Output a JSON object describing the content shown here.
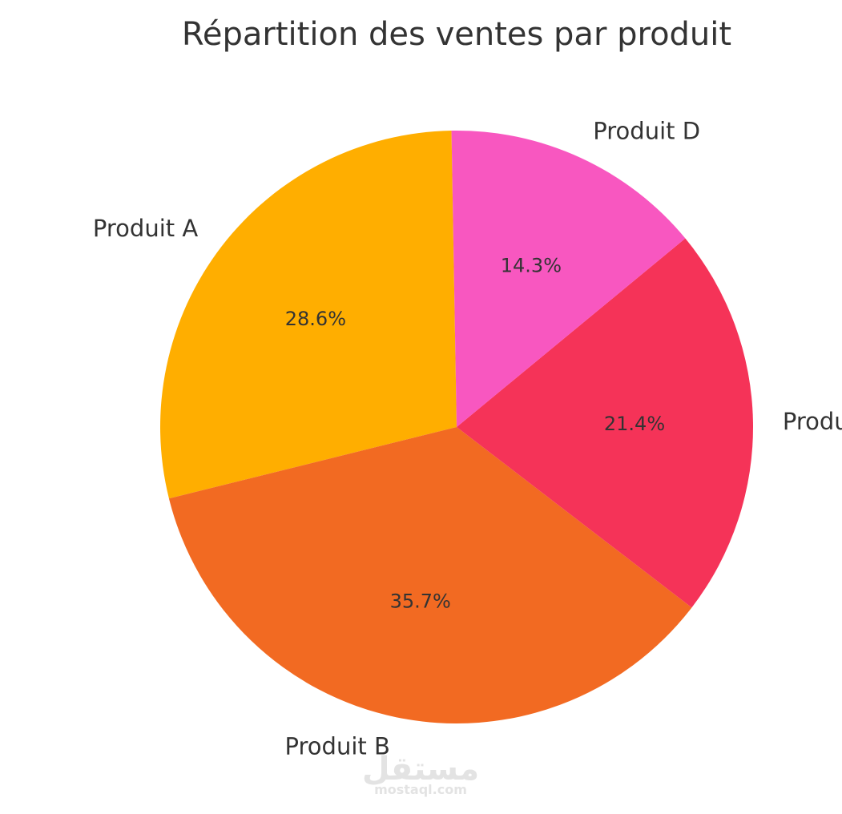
{
  "chart_data": {
    "type": "pie",
    "title": "Répartition des ventes par produit",
    "start_angle_deg": 91,
    "direction": "counterclockwise",
    "slices": [
      {
        "label": "Produit A",
        "value": 28.6,
        "pct_label": "28.6%",
        "color": "#FFAE00"
      },
      {
        "label": "Produit B",
        "value": 35.7,
        "pct_label": "35.7%",
        "color": "#F26A22"
      },
      {
        "label": "Produit C",
        "value": 21.4,
        "pct_label": "21.4%",
        "color": "#F53358"
      },
      {
        "label": "Produit D",
        "value": 14.3,
        "pct_label": "14.3%",
        "color": "#F857C0"
      }
    ]
  },
  "watermark": {
    "arabic": "مستقل",
    "latin": "mostaql.com"
  }
}
